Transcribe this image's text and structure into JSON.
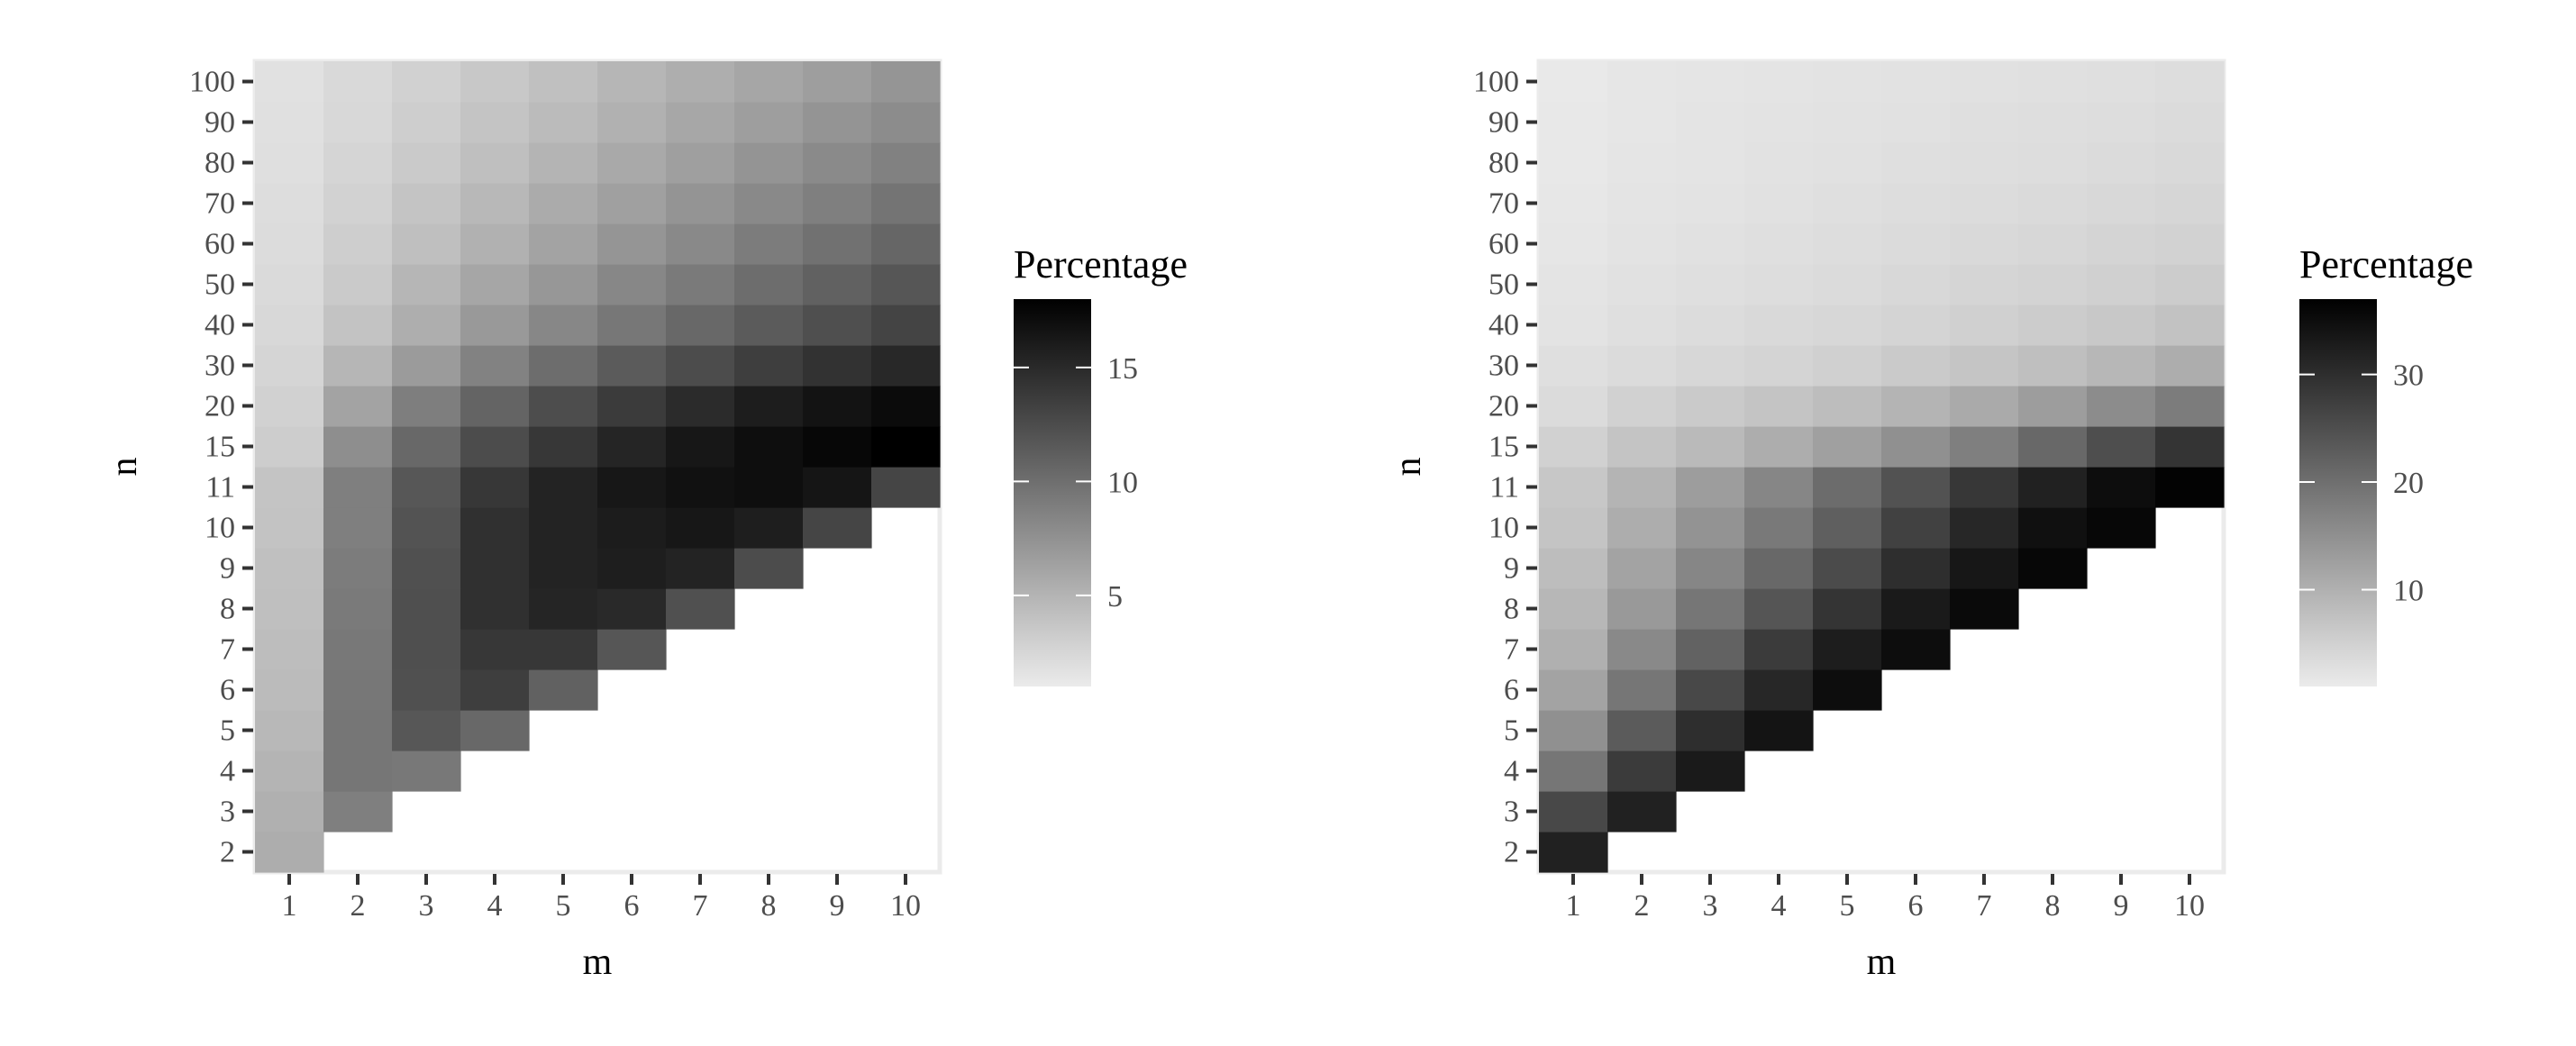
{
  "chart_data": [
    {
      "type": "heatmap",
      "xlabel": "m",
      "ylabel": "n",
      "x_categories": [
        "1",
        "2",
        "3",
        "4",
        "5",
        "6",
        "7",
        "8",
        "9",
        "10"
      ],
      "y_categories": [
        "2",
        "3",
        "4",
        "5",
        "6",
        "7",
        "8",
        "9",
        "10",
        "11",
        "15",
        "20",
        "30",
        "40",
        "50",
        "60",
        "70",
        "80",
        "90",
        "100"
      ],
      "legend_title": "Percentage",
      "legend_ticks": [
        5,
        10,
        15
      ],
      "color_range": [
        1,
        18
      ],
      "color_scale": "light-grey-to-black",
      "values": [
        [
          5.5,
          null,
          null,
          null,
          null,
          null,
          null,
          null,
          null,
          null
        ],
        [
          5.3,
          8.8,
          null,
          null,
          null,
          null,
          null,
          null,
          null,
          null
        ],
        [
          5.0,
          9.5,
          9.3,
          null,
          null,
          null,
          null,
          null,
          null,
          null
        ],
        [
          4.7,
          9.5,
          11.7,
          10.5,
          null,
          null,
          null,
          null,
          null,
          null
        ],
        [
          4.5,
          9.4,
          12.2,
          13.5,
          11.0,
          null,
          null,
          null,
          null,
          null
        ],
        [
          4.3,
          9.3,
          12.3,
          14.0,
          14.0,
          11.8,
          null,
          null,
          null,
          null
        ],
        [
          4.2,
          9.2,
          12.3,
          14.5,
          15.3,
          15.0,
          12.2,
          null,
          null,
          null
        ],
        [
          4.1,
          9.0,
          12.2,
          14.5,
          15.5,
          15.8,
          15.5,
          12.5,
          null,
          null
        ],
        [
          3.9,
          8.8,
          12.0,
          14.5,
          15.5,
          16.0,
          16.3,
          15.8,
          13.0,
          null
        ],
        [
          3.8,
          8.8,
          11.7,
          14.0,
          15.5,
          16.3,
          16.8,
          17.0,
          16.5,
          13.0
        ],
        [
          3.2,
          7.7,
          10.5,
          12.5,
          14.0,
          15.3,
          16.3,
          17.0,
          17.5,
          18.0
        ],
        [
          2.9,
          6.2,
          8.9,
          10.8,
          12.4,
          13.7,
          14.9,
          15.9,
          16.6,
          17.2
        ],
        [
          2.6,
          4.8,
          6.8,
          8.6,
          10.1,
          11.4,
          12.5,
          13.5,
          14.4,
          15.1
        ],
        [
          2.4,
          3.9,
          5.4,
          6.9,
          8.2,
          9.4,
          10.5,
          11.4,
          12.3,
          13.1
        ],
        [
          2.2,
          3.4,
          4.8,
          6.0,
          7.1,
          8.2,
          9.2,
          10.1,
          11.0,
          11.8
        ],
        [
          2.1,
          3.1,
          4.2,
          5.2,
          6.2,
          7.2,
          8.1,
          9.0,
          9.8,
          10.6
        ],
        [
          2.0,
          2.8,
          3.8,
          4.7,
          5.6,
          6.4,
          7.3,
          8.1,
          8.8,
          9.6
        ],
        [
          1.9,
          2.6,
          3.4,
          4.2,
          5.0,
          5.8,
          6.5,
          7.3,
          8.0,
          8.7
        ],
        [
          1.8,
          2.4,
          3.1,
          3.8,
          4.5,
          5.2,
          5.9,
          6.6,
          7.3,
          7.9
        ],
        [
          1.7,
          2.3,
          2.9,
          3.5,
          4.1,
          4.8,
          5.4,
          6.0,
          6.6,
          7.2
        ]
      ]
    },
    {
      "type": "heatmap",
      "xlabel": "m",
      "ylabel": "n",
      "x_categories": [
        "1",
        "2",
        "3",
        "4",
        "5",
        "6",
        "7",
        "8",
        "9",
        "10"
      ],
      "y_categories": [
        "2",
        "3",
        "4",
        "5",
        "6",
        "7",
        "8",
        "9",
        "10",
        "11",
        "15",
        "20",
        "30",
        "40",
        "50",
        "60",
        "70",
        "80",
        "90",
        "100"
      ],
      "legend_title": "Percentage",
      "legend_ticks": [
        10,
        20,
        30
      ],
      "color_range": [
        1,
        37
      ],
      "color_scale": "light-grey-to-black",
      "values": [
        [
          32.0,
          null,
          null,
          null,
          null,
          null,
          null,
          null,
          null,
          null
        ],
        [
          26.0,
          32.0,
          null,
          null,
          null,
          null,
          null,
          null,
          null,
          null
        ],
        [
          19.0,
          28.0,
          33.0,
          null,
          null,
          null,
          null,
          null,
          null,
          null
        ],
        [
          15.0,
          23.0,
          30.0,
          34.0,
          null,
          null,
          null,
          null,
          null,
          null
        ],
        [
          12.0,
          19.0,
          26.0,
          31.0,
          35.0,
          null,
          null,
          null,
          null,
          null
        ],
        [
          10.0,
          16.0,
          22.0,
          28.0,
          32.5,
          35.0,
          null,
          null,
          null,
          null
        ],
        [
          9.0,
          13.5,
          19.0,
          24.0,
          29.0,
          33.0,
          35.5,
          null,
          null,
          null
        ],
        [
          8.0,
          12.0,
          16.5,
          21.0,
          25.5,
          30.0,
          33.5,
          36.0,
          null,
          null
        ],
        [
          7.0,
          10.5,
          14.5,
          18.5,
          22.5,
          27.0,
          31.0,
          34.5,
          36.0,
          null
        ],
        [
          6.5,
          9.5,
          13.0,
          16.5,
          20.5,
          24.5,
          28.5,
          32.0,
          35.0,
          36.5
        ],
        [
          5.0,
          7.0,
          8.5,
          10.5,
          12.5,
          15.0,
          17.5,
          21.0,
          25.0,
          29.0
        ],
        [
          3.5,
          5.0,
          6.0,
          7.0,
          8.0,
          9.5,
          11.0,
          13.0,
          15.5,
          18.0
        ],
        [
          2.8,
          3.5,
          4.0,
          4.6,
          5.2,
          6.0,
          6.8,
          7.8,
          9.0,
          10.5
        ],
        [
          2.3,
          2.9,
          3.3,
          3.7,
          4.1,
          4.6,
          5.1,
          5.7,
          6.4,
          7.3
        ],
        [
          2.0,
          2.5,
          2.9,
          3.2,
          3.5,
          3.9,
          4.3,
          4.7,
          5.2,
          5.8
        ],
        [
          1.8,
          2.2,
          2.6,
          2.9,
          3.1,
          3.4,
          3.7,
          4.1,
          4.5,
          4.9
        ],
        [
          1.6,
          2.0,
          2.3,
          2.6,
          2.8,
          3.1,
          3.3,
          3.6,
          3.9,
          4.2
        ],
        [
          1.5,
          1.9,
          2.1,
          2.4,
          2.6,
          2.8,
          3.0,
          3.2,
          3.5,
          3.8
        ],
        [
          1.4,
          1.8,
          2.0,
          2.2,
          2.4,
          2.6,
          2.8,
          3.0,
          3.2,
          3.4
        ],
        [
          1.3,
          1.7,
          1.9,
          2.1,
          2.2,
          2.4,
          2.6,
          2.7,
          2.9,
          3.1
        ]
      ]
    }
  ]
}
